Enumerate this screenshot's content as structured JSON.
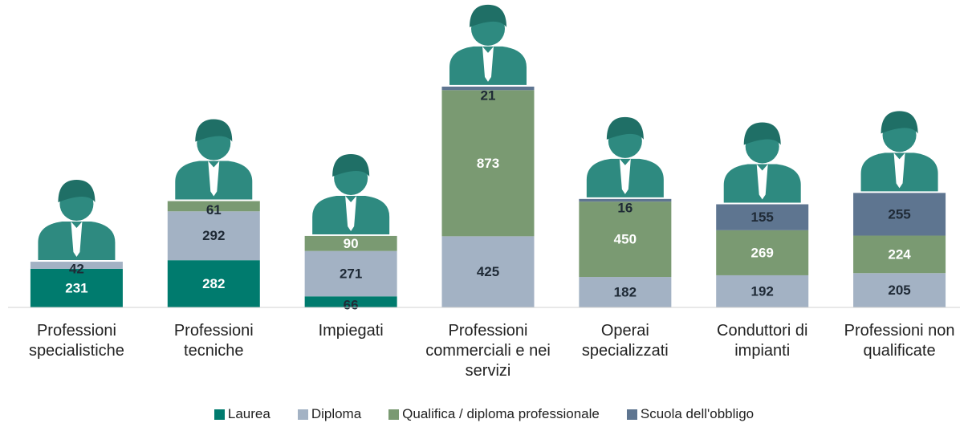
{
  "chart_data": {
    "type": "stacked_bar",
    "categories": [
      "Professioni specialistiche",
      "Professioni tecniche",
      "Impiegati",
      "Professioni commerciali e nei servizi",
      "Operai specializzati",
      "Conduttori di impianti",
      "Professioni non qualificate"
    ],
    "series": [
      {
        "name": "Laurea",
        "color": "#007b6e",
        "values": [
          231,
          282,
          66,
          null,
          null,
          null,
          null
        ]
      },
      {
        "name": "Diploma",
        "color": "#a3b2c4",
        "values": [
          42,
          292,
          271,
          425,
          182,
          192,
          205
        ]
      },
      {
        "name": "Qualifica / diploma professionale",
        "color": "#7a9a72",
        "values": [
          null,
          61,
          90,
          873,
          450,
          269,
          224
        ]
      },
      {
        "name": "Scuola dell'obbligo",
        "color": "#5e7590",
        "values": [
          null,
          null,
          null,
          21,
          16,
          155,
          255
        ]
      }
    ],
    "ylim": [
      0,
      1400
    ]
  }
}
